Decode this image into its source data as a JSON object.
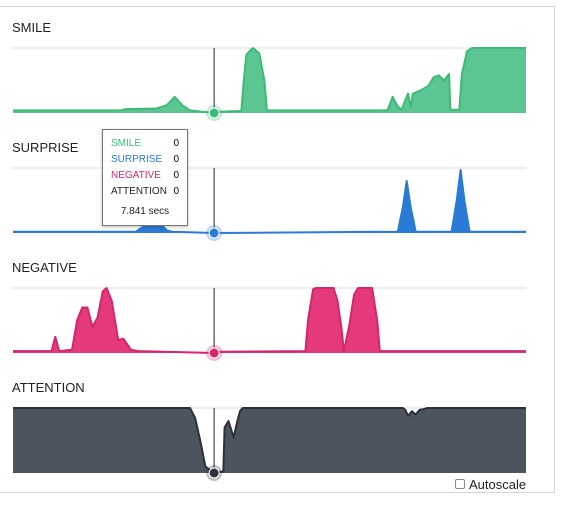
{
  "chart_data": {
    "type": "area",
    "x_unit": "secs",
    "cursor_time": 7.841,
    "series": [
      {
        "name": "SMILE",
        "color": "#3dba78",
        "fill": "#5cc692",
        "points": [
          [
            0,
            0.04
          ],
          [
            4.2,
            0.04
          ],
          [
            4.4,
            0.06
          ],
          [
            5.6,
            0.07
          ],
          [
            6.0,
            0.12
          ],
          [
            6.3,
            0.25
          ],
          [
            6.6,
            0.12
          ],
          [
            6.9,
            0.04
          ],
          [
            7.841,
            0
          ],
          [
            8.0,
            0.02
          ],
          [
            8.9,
            0.03
          ],
          [
            9.0,
            0.5
          ],
          [
            9.1,
            0.9
          ],
          [
            9.35,
            1.0
          ],
          [
            9.6,
            0.92
          ],
          [
            9.8,
            0.5
          ],
          [
            9.9,
            0.04
          ],
          [
            14.6,
            0.04
          ],
          [
            14.8,
            0.25
          ],
          [
            15.0,
            0.1
          ],
          [
            15.15,
            0.05
          ],
          [
            15.4,
            0.3
          ],
          [
            15.5,
            0.1
          ],
          [
            15.6,
            0.3
          ],
          [
            15.9,
            0.35
          ],
          [
            16.2,
            0.42
          ],
          [
            16.4,
            0.55
          ],
          [
            16.6,
            0.58
          ],
          [
            16.8,
            0.5
          ],
          [
            17.0,
            0.6
          ],
          [
            17.05,
            0.05
          ],
          [
            17.4,
            0.05
          ],
          [
            17.5,
            0.6
          ],
          [
            17.7,
            0.95
          ],
          [
            17.9,
            1.0
          ],
          [
            20,
            1.0
          ]
        ]
      },
      {
        "name": "SURPRISE",
        "color": "#2a7bd6",
        "fill": "#2a7bd6",
        "points": [
          [
            0,
            0.02
          ],
          [
            4.8,
            0.02
          ],
          [
            5.0,
            0.08
          ],
          [
            5.3,
            0.15
          ],
          [
            5.6,
            0.3
          ],
          [
            5.8,
            0.12
          ],
          [
            6.0,
            0.04
          ],
          [
            6.2,
            0.02
          ],
          [
            7.841,
            0
          ],
          [
            15.0,
            0.02
          ],
          [
            15.2,
            0.4
          ],
          [
            15.35,
            0.8
          ],
          [
            15.5,
            0.4
          ],
          [
            15.7,
            0.02
          ],
          [
            17.1,
            0.02
          ],
          [
            17.3,
            0.5
          ],
          [
            17.45,
            0.97
          ],
          [
            17.6,
            0.5
          ],
          [
            17.8,
            0.02
          ],
          [
            20,
            0.02
          ]
        ]
      },
      {
        "name": "NEGATIVE",
        "color": "#d4266a",
        "fill": "#e43a7c",
        "points": [
          [
            0,
            0.03
          ],
          [
            1.5,
            0.03
          ],
          [
            1.65,
            0.25
          ],
          [
            1.8,
            0.03
          ],
          [
            2.3,
            0.05
          ],
          [
            2.5,
            0.5
          ],
          [
            2.7,
            0.7
          ],
          [
            2.9,
            0.7
          ],
          [
            3.1,
            0.4
          ],
          [
            3.3,
            0.55
          ],
          [
            3.5,
            0.95
          ],
          [
            3.65,
            1.0
          ],
          [
            3.85,
            0.8
          ],
          [
            4.1,
            0.2
          ],
          [
            4.3,
            0.22
          ],
          [
            4.6,
            0.05
          ],
          [
            4.9,
            0.03
          ],
          [
            7.841,
            0
          ],
          [
            8.0,
            0.02
          ],
          [
            11.4,
            0.03
          ],
          [
            11.5,
            0.5
          ],
          [
            11.7,
            0.98
          ],
          [
            11.8,
            1.0
          ],
          [
            12.5,
            1.0
          ],
          [
            12.65,
            0.8
          ],
          [
            12.8,
            0.4
          ],
          [
            12.9,
            0.03
          ],
          [
            13.1,
            0.4
          ],
          [
            13.3,
            0.9
          ],
          [
            13.45,
            1.0
          ],
          [
            14.0,
            1.0
          ],
          [
            14.2,
            0.5
          ],
          [
            14.3,
            0.03
          ],
          [
            20,
            0.03
          ]
        ]
      },
      {
        "name": "ATTENTION",
        "color": "#2b313a",
        "fill": "#4e545e",
        "points": [
          [
            0,
            1.0
          ],
          [
            6.9,
            1.0
          ],
          [
            7.1,
            0.85
          ],
          [
            7.3,
            0.5
          ],
          [
            7.5,
            0.1
          ],
          [
            7.841,
            0
          ],
          [
            8.0,
            0.02
          ],
          [
            8.2,
            0.02
          ],
          [
            8.25,
            0.7
          ],
          [
            8.4,
            0.8
          ],
          [
            8.6,
            0.55
          ],
          [
            8.75,
            0.8
          ],
          [
            8.85,
            0.95
          ],
          [
            8.95,
            1.0
          ],
          [
            15.2,
            1.0
          ],
          [
            15.3,
            0.97
          ],
          [
            15.4,
            0.88
          ],
          [
            15.55,
            0.95
          ],
          [
            15.7,
            0.9
          ],
          [
            15.85,
            0.97
          ],
          [
            16.0,
            0.98
          ],
          [
            16.15,
            1.0
          ],
          [
            20,
            1.0
          ]
        ]
      }
    ]
  },
  "tooltip": {
    "rows": [
      {
        "label": "SMILE",
        "value": "0",
        "color": "#3dba78"
      },
      {
        "label": "SURPRISE",
        "value": "0",
        "color": "#2a7bd6"
      },
      {
        "label": "NEGATIVE",
        "value": "0",
        "color": "#d4266a"
      },
      {
        "label": "ATTENTION",
        "value": "0",
        "color": "#222222"
      }
    ],
    "time": "7.841 secs"
  },
  "controls": {
    "autoscale_label": "Autoscale",
    "autoscale_checked": false
  }
}
